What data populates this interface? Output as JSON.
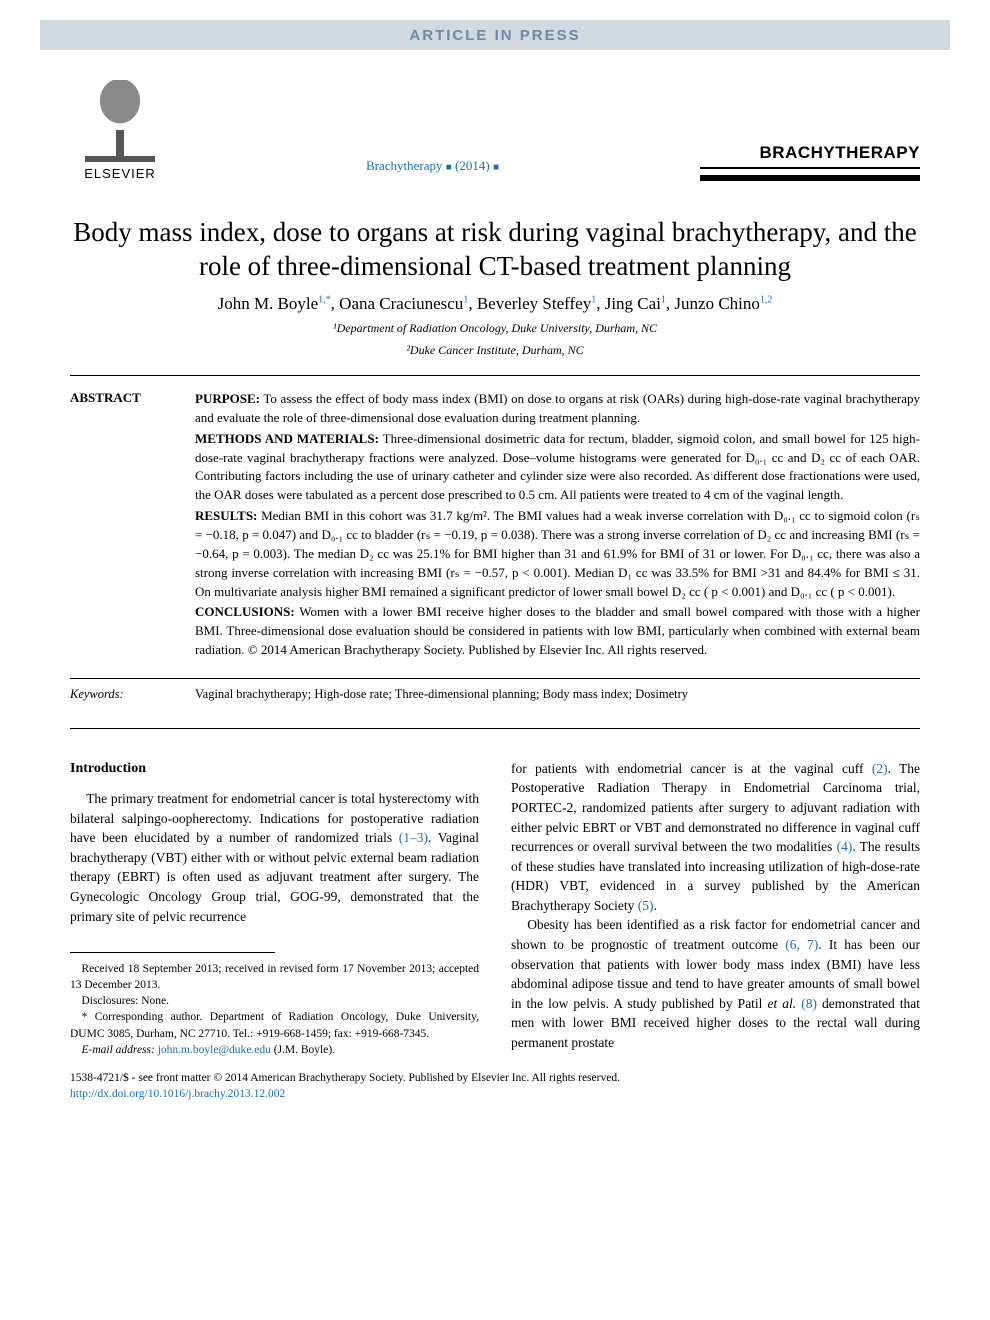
{
  "banner": {
    "text": "ARTICLE IN PRESS"
  },
  "header": {
    "publisher_label": "ELSEVIER",
    "journal_link_prefix": "Brachytherapy",
    "journal_link_year": "(2014)",
    "journal_name": "BRACHYTHERAPY"
  },
  "title": "Body mass index, dose to organs at risk during vaginal brachytherapy, and the role of three-dimensional CT-based treatment planning",
  "authors_html": "John M. Boyle<sup>1,*</sup>, Oana Craciunescu<sup>1</sup>, Beverley Steffey<sup>1</sup>, Jing Cai<sup>1</sup>, Junzo Chino<sup>1,2</sup>",
  "affiliations": [
    "¹Department of Radiation Oncology, Duke University, Durham, NC",
    "²Duke Cancer Institute, Durham, NC"
  ],
  "abstract_label": "ABSTRACT",
  "abstract": {
    "purpose_label": "PURPOSE:",
    "purpose": "To assess the effect of body mass index (BMI) on dose to organs at risk (OARs) during high-dose-rate vaginal brachytherapy and evaluate the role of three-dimensional dose evaluation during treatment planning.",
    "methods_label": "METHODS AND MATERIALS:",
    "methods": "Three-dimensional dosimetric data for rectum, bladder, sigmoid colon, and small bowel for 125 high-dose-rate vaginal brachytherapy fractions were analyzed. Dose–volume histograms were generated for D₀.₁ cc and D₂ cc of each OAR. Contributing factors including the use of urinary catheter and cylinder size were also recorded. As different dose fractionations were used, the OAR doses were tabulated as a percent dose prescribed to 0.5 cm. All patients were treated to 4 cm of the vaginal length.",
    "results_label": "RESULTS:",
    "results": "Median BMI in this cohort was 31.7 kg/m². The BMI values had a weak inverse correlation with D₀.₁ cc to sigmoid colon (rₛ = −0.18, p = 0.047) and D₀.₁ cc to bladder (rₛ = −0.19, p = 0.038). There was a strong inverse correlation of D₂ cc and increasing BMI (rₛ = −0.64, p = 0.003). The median D₂ cc was 25.1% for BMI higher than 31 and 61.9% for BMI of 31 or lower. For D₀.₁ cc, there was also a strong inverse correlation with increasing BMI (rₛ = −0.57, p < 0.001). Median D₁ cc was 33.5% for BMI >31 and 84.4% for BMI ≤ 31. On multivariate analysis higher BMI remained a significant predictor of lower small bowel D₂ cc ( p < 0.001) and D₀.₁ cc ( p < 0.001).",
    "conclusions_label": "CONCLUSIONS:",
    "conclusions": "Women with a lower BMI receive higher doses to the bladder and small bowel compared with those with a higher BMI. Three-dimensional dose evaluation should be considered in patients with low BMI, particularly when combined with external beam radiation. © 2014 American Brachytherapy Society. Published by Elsevier Inc. All rights reserved."
  },
  "keywords_label": "Keywords:",
  "keywords": "Vaginal brachytherapy; High-dose rate; Three-dimensional planning; Body mass index; Dosimetry",
  "intro_heading": "Introduction",
  "intro_left_1a": "The primary treatment for endometrial cancer is total hysterectomy with bilateral salpingo-oopherectomy. Indications for postoperative radiation have been elucidated by a number of randomized trials ",
  "intro_left_ref1": "(1–3)",
  "intro_left_1b": ". Vaginal brachytherapy (VBT) either with or without pelvic external beam radiation therapy (EBRT) is often used as adjuvant treatment after surgery. The Gynecologic Oncology Group trial, GOG-99, demonstrated that the primary site of pelvic recurrence",
  "intro_right_1a": "for patients with endometrial cancer is at the vaginal cuff ",
  "intro_right_ref2": "(2)",
  "intro_right_1b": ". The Postoperative Radiation Therapy in Endometrial Carcinoma trial, PORTEC-2, randomized patients after surgery to adjuvant radiation with either pelvic EBRT or VBT and demonstrated no difference in vaginal cuff recurrences or overall survival between the two modalities ",
  "intro_right_ref4": "(4)",
  "intro_right_1c": ". The results of these studies have translated into increasing utilization of high-dose-rate (HDR) VBT, evidenced in a survey published by the American Brachytherapy Society ",
  "intro_right_ref5": "(5)",
  "intro_right_1d": ".",
  "intro_right_2a": "Obesity has been identified as a risk factor for endometrial cancer and shown to be prognostic of treatment outcome ",
  "intro_right_ref67": "(6, 7)",
  "intro_right_2b": ". It has been our observation that patients with lower body mass index (BMI) have less abdominal adipose tissue and tend to have greater amounts of small bowel in the low pelvis. A study published by Patil ",
  "intro_right_etal": "et al.",
  "intro_right_ref8": "(8)",
  "intro_right_2c": " demonstrated that men with lower BMI received higher doses to the rectal wall during permanent prostate",
  "footnotes": {
    "received": "Received 18 September 2013; received in revised form 17 November 2013; accepted 13 December 2013.",
    "disclosures": "Disclosures: None.",
    "corresponding": "* Corresponding author. Department of Radiation Oncology, Duke University, DUMC 3085, Durham, NC 27710. Tel.: +919-668-1459; fax: +919-668-7345.",
    "email_label": "E-mail address:",
    "email": "john.m.boyle@duke.edu",
    "email_name": "(J.M. Boyle)."
  },
  "footer": {
    "copyright": "1538-4721/$ - see front matter © 2014 American Brachytherapy Society. Published by Elsevier Inc. All rights reserved.",
    "doi": "http://dx.doi.org/10.1016/j.brachy.2013.12.002"
  },
  "colors": {
    "link": "#1a6fb5",
    "banner_bg": "#d0d8e0",
    "banner_text": "#6a8aa8"
  }
}
